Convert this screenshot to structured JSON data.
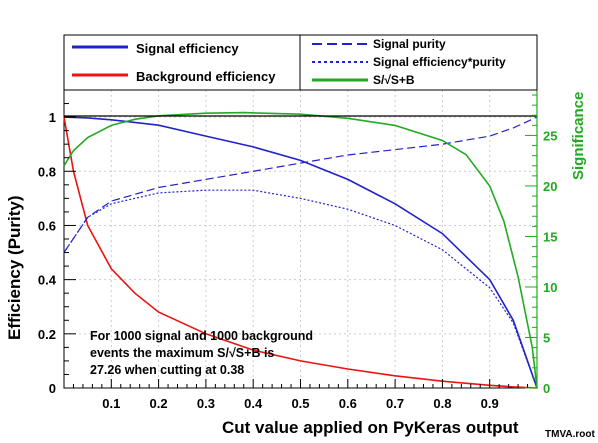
{
  "chart_data": {
    "type": "line",
    "xlabel": "Cut value applied on PyKeras output",
    "xlabel_suffix": "TMVA.root",
    "ylabel_left": "Efficiency (Purity)",
    "ylabel_right": "Significance",
    "xlim": [
      0,
      1.0
    ],
    "ylim_left": [
      0,
      1.1
    ],
    "ylim_right": [
      0,
      29.5
    ],
    "x_ticks": [
      "0.1",
      "0.2",
      "0.3",
      "0.4",
      "0.5",
      "0.6",
      "0.7",
      "0.8",
      "0.9"
    ],
    "y_ticks_left": [
      "0",
      "0.2",
      "0.4",
      "0.6",
      "0.8",
      "1"
    ],
    "y_ticks_right": [
      "0",
      "5",
      "10",
      "15",
      "20",
      "25"
    ],
    "grid": true,
    "legend_placement": "top",
    "series": [
      {
        "name": "Signal efficiency",
        "axis": "left",
        "color": "#2222cc",
        "style": "solid",
        "x": [
          0,
          0.05,
          0.1,
          0.2,
          0.3,
          0.4,
          0.5,
          0.6,
          0.7,
          0.8,
          0.9,
          0.95,
          1.0
        ],
        "y": [
          1.0,
          0.997,
          0.99,
          0.97,
          0.93,
          0.89,
          0.84,
          0.77,
          0.68,
          0.57,
          0.4,
          0.25,
          0.0
        ]
      },
      {
        "name": "Background efficiency",
        "axis": "left",
        "color": "#ee1111",
        "style": "solid",
        "x": [
          0,
          0.02,
          0.05,
          0.1,
          0.15,
          0.2,
          0.3,
          0.4,
          0.5,
          0.6,
          0.7,
          0.8,
          0.9,
          0.95,
          1.0
        ],
        "y": [
          1.0,
          0.8,
          0.6,
          0.44,
          0.35,
          0.28,
          0.2,
          0.14,
          0.1,
          0.07,
          0.045,
          0.025,
          0.01,
          0.004,
          0.0
        ]
      },
      {
        "name": "Signal purity",
        "axis": "left",
        "color": "#2222cc",
        "style": "dashed",
        "x": [
          0,
          0.05,
          0.1,
          0.2,
          0.3,
          0.4,
          0.5,
          0.6,
          0.7,
          0.8,
          0.9,
          0.95,
          1.0
        ],
        "y": [
          0.5,
          0.63,
          0.69,
          0.74,
          0.77,
          0.8,
          0.83,
          0.86,
          0.88,
          0.9,
          0.93,
          0.96,
          1.0
        ]
      },
      {
        "name": "Signal efficiency*purity",
        "axis": "left",
        "color": "#2222cc",
        "style": "dotted",
        "x": [
          0,
          0.05,
          0.1,
          0.2,
          0.3,
          0.4,
          0.5,
          0.6,
          0.7,
          0.8,
          0.9,
          0.95,
          1.0
        ],
        "y": [
          0.5,
          0.63,
          0.68,
          0.72,
          0.73,
          0.73,
          0.7,
          0.66,
          0.6,
          0.51,
          0.37,
          0.24,
          0.0
        ]
      },
      {
        "name": "S/√S+B",
        "axis": "right",
        "color": "#22aa22",
        "style": "solid",
        "x": [
          0,
          0.02,
          0.05,
          0.1,
          0.15,
          0.2,
          0.3,
          0.38,
          0.5,
          0.6,
          0.7,
          0.8,
          0.85,
          0.9,
          0.93,
          0.96,
          0.99,
          1.0
        ],
        "y": [
          22,
          23.5,
          24.8,
          26.0,
          26.6,
          26.95,
          27.2,
          27.26,
          27.1,
          26.7,
          26.0,
          24.5,
          23.1,
          20.0,
          16.5,
          11.0,
          4.0,
          0.0
        ]
      }
    ],
    "annotation_lines": [
      "For 1000 signal and 1000 background",
      "events the maximum S/√S+B is",
      "27.26 when cutting at  0.38"
    ]
  },
  "legend": {
    "left": [
      "Signal efficiency",
      "Background efficiency"
    ],
    "right": [
      "Signal purity",
      "Signal efficiency*purity",
      "S/√S+B"
    ]
  }
}
